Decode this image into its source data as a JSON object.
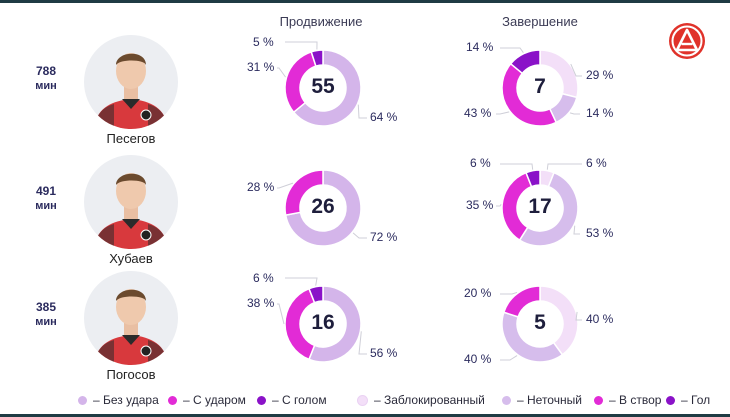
{
  "headers": {
    "progression": "Продвижение",
    "finishing": "Завершение"
  },
  "colors": {
    "no_shot": "#d4b5ea",
    "with_shot": "#e22bd6",
    "with_goal": "#8a12c8",
    "blocked": "#f3dff8",
    "off_target": "#d6bdec",
    "on_target": "#e22bd6",
    "goal": "#8a12c8",
    "logo_red": "#e0322a"
  },
  "players": [
    {
      "name": "Песегов",
      "minutes": "788",
      "minutes_label": "мин",
      "progression": {
        "total": "55",
        "no_shot": 64,
        "with_shot": 31,
        "with_goal": 5,
        "labels": {
          "no_shot": "64 %",
          "with_shot": "31 %",
          "with_goal": "5 %"
        }
      },
      "finishing": {
        "total": "7",
        "blocked": 29,
        "off_target": 14,
        "on_target": 43,
        "goal": 14,
        "labels": {
          "blocked": "29 %",
          "off_target": "14 %",
          "on_target": "43 %",
          "goal": "14 %"
        }
      }
    },
    {
      "name": "Хубаев",
      "minutes": "491",
      "minutes_label": "мин",
      "progression": {
        "total": "26",
        "no_shot": 72,
        "with_shot": 28,
        "with_goal": 0,
        "labels": {
          "no_shot": "72 %",
          "with_shot": "28 %"
        }
      },
      "finishing": {
        "total": "17",
        "blocked": 6,
        "off_target": 53,
        "on_target": 35,
        "goal": 6,
        "labels": {
          "blocked": "6 %",
          "off_target": "53 %",
          "on_target": "35 %",
          "goal": "6 %"
        }
      }
    },
    {
      "name": "Погосов",
      "minutes": "385",
      "minutes_label": "мин",
      "progression": {
        "total": "16",
        "no_shot": 56,
        "with_shot": 38,
        "with_goal": 6,
        "labels": {
          "no_shot": "56 %",
          "with_shot": "38 %",
          "with_goal": "6 %"
        }
      },
      "finishing": {
        "total": "5",
        "blocked": 40,
        "off_target": 40,
        "on_target": 20,
        "goal": 0,
        "labels": {
          "blocked": "40 %",
          "off_target": "40 %",
          "on_target": "20 %"
        }
      }
    }
  ],
  "legend": [
    {
      "label": "– Без удара",
      "color": "#d4b5ea"
    },
    {
      "label": "– С ударом",
      "color": "#e22bd6"
    },
    {
      "label": "– С голом",
      "color": "#8a12c8"
    },
    {
      "label": "– Заблокированный",
      "color": "#f3dff8"
    },
    {
      "label": "– Неточный",
      "color": "#d6bdec"
    },
    {
      "label": "– В створ",
      "color": "#e22bd6"
    },
    {
      "label": "– Гол",
      "color": "#8a12c8"
    }
  ],
  "chart_data": [
    {
      "type": "pie",
      "title": "Продвижение",
      "player": "Песегов",
      "total": 55,
      "categories": [
        "Без удара",
        "С ударом",
        "С голом"
      ],
      "values": [
        64,
        31,
        5
      ]
    },
    {
      "type": "pie",
      "title": "Завершение",
      "player": "Песегов",
      "total": 7,
      "categories": [
        "Заблокированный",
        "Неточный",
        "В створ",
        "Гол"
      ],
      "values": [
        29,
        14,
        43,
        14
      ]
    },
    {
      "type": "pie",
      "title": "Продвижение",
      "player": "Хубаев",
      "total": 26,
      "categories": [
        "Без удара",
        "С ударом",
        "С голом"
      ],
      "values": [
        72,
        28,
        0
      ]
    },
    {
      "type": "pie",
      "title": "Завершение",
      "player": "Хубаев",
      "total": 17,
      "categories": [
        "Заблокированный",
        "Неточный",
        "В створ",
        "Гол"
      ],
      "values": [
        6,
        53,
        35,
        6
      ]
    },
    {
      "type": "pie",
      "title": "Продвижение",
      "player": "Погосов",
      "total": 16,
      "categories": [
        "Без удара",
        "С ударом",
        "С голом"
      ],
      "values": [
        56,
        38,
        6
      ]
    },
    {
      "type": "pie",
      "title": "Завершение",
      "player": "Погосов",
      "total": 5,
      "categories": [
        "Заблокированный",
        "Неточный",
        "В створ",
        "Гол"
      ],
      "values": [
        40,
        40,
        20,
        0
      ]
    }
  ]
}
